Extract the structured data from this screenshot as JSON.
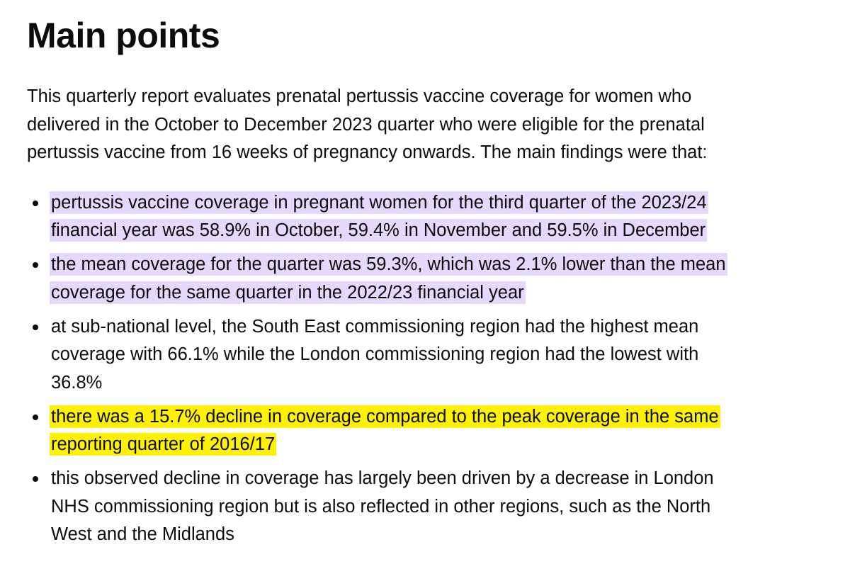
{
  "heading": "Main points",
  "intro": {
    "lines": [
      "This quarterly report evaluates prenatal pertussis vaccine coverage for women who",
      "delivered in the October to December 2023 quarter who were eligible for the prenatal",
      "pertussis vaccine from 16 weeks of pregnancy onwards. The main findings were that:"
    ]
  },
  "bullets": [
    {
      "highlight": "#e6d7fc",
      "lines": [
        "pertussis vaccine coverage in pregnant women for the third quarter of the 2023/24",
        "financial year was 58.9% in October, 59.4% in November and 59.5% in December"
      ]
    },
    {
      "highlight": "#e6d7fc",
      "lines": [
        "the mean coverage for the quarter was 59.3%, which was 2.1% lower than the mean",
        "coverage for the same quarter in the 2022/23 financial year"
      ]
    },
    {
      "highlight": null,
      "lines": [
        "at sub-national level, the South East commissioning region had the highest mean",
        "coverage with 66.1% while the London commissioning region had the lowest with",
        "36.8%"
      ]
    },
    {
      "highlight": "#fff200",
      "lines": [
        "there was a 15.7% decline in coverage compared to the peak coverage in the same",
        "reporting quarter of 2016/17"
      ]
    },
    {
      "highlight": null,
      "lines": [
        "this observed decline in coverage has largely been driven by a decrease in London",
        "NHS commissioning region but is also reflected in other regions, such as the North",
        "West and the Midlands"
      ]
    }
  ]
}
